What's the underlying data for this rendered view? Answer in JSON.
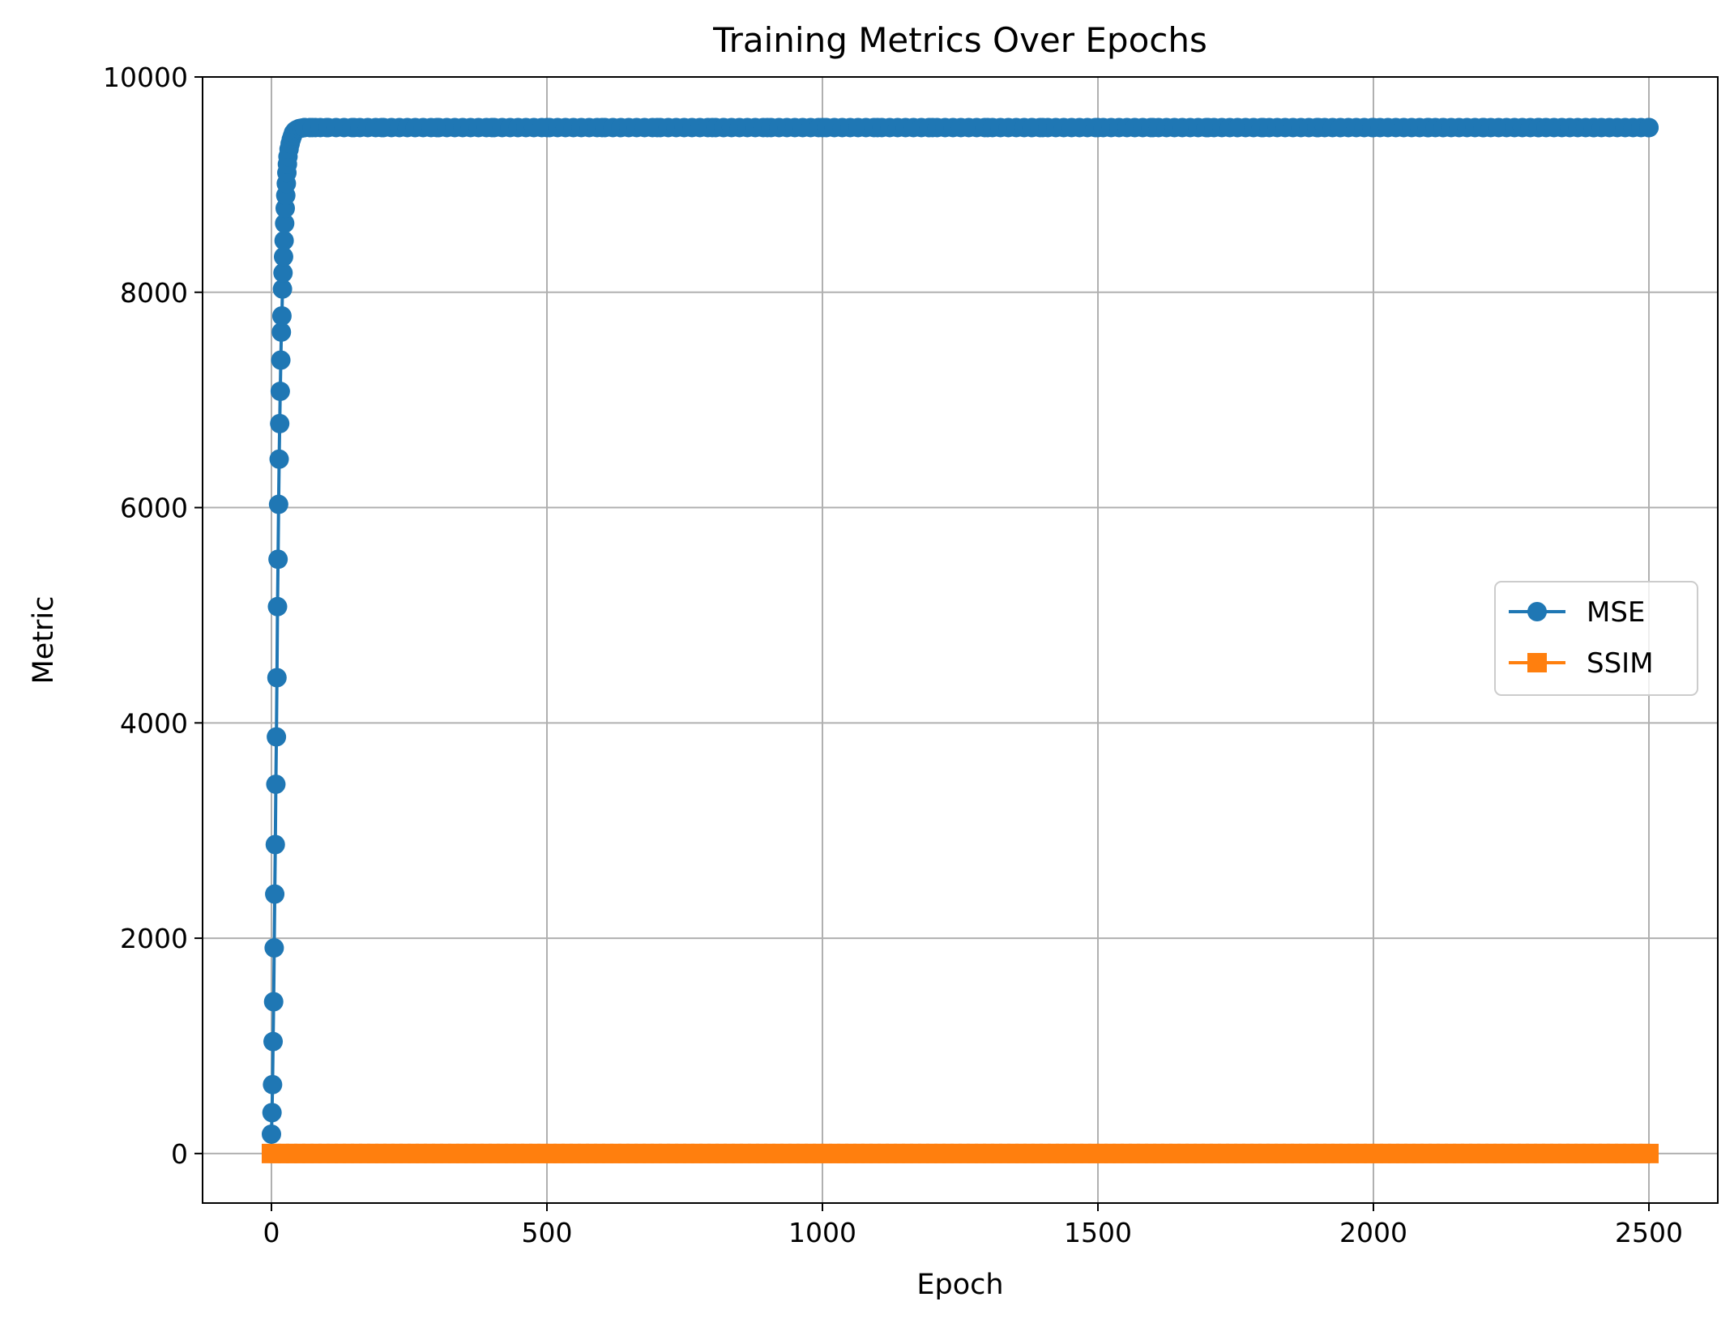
{
  "chart_data": {
    "type": "line",
    "title": "Training Metrics Over Epochs",
    "xlabel": "Epoch",
    "ylabel": "Metric",
    "xlim": [
      -125,
      2625
    ],
    "ylim": [
      -460,
      10000
    ],
    "xticks": [
      0,
      500,
      1000,
      1500,
      2000,
      2500
    ],
    "yticks": [
      0,
      2000,
      4000,
      6000,
      8000,
      10000
    ],
    "xtick_labels": [
      "0",
      "500",
      "1000",
      "1500",
      "2000",
      "2500"
    ],
    "ytick_labels": [
      "0",
      "2000",
      "4000",
      "6000",
      "8000",
      "10000"
    ],
    "grid": true,
    "legend_position": "center-right",
    "series": [
      {
        "name": "MSE",
        "color": "#1f77b4",
        "marker": "circle",
        "x": [
          0,
          1,
          2,
          3,
          4,
          5,
          6,
          7,
          8,
          9,
          10,
          11,
          12,
          13,
          14,
          15,
          16,
          17,
          18,
          19,
          20,
          21,
          22,
          23,
          24,
          25,
          26,
          27,
          28,
          29,
          30,
          32,
          34,
          36,
          38,
          40,
          43,
          46,
          50,
          55,
          60,
          70,
          80,
          100,
          150,
          200,
          300,
          400,
          500,
          600,
          700,
          800,
          900,
          1000,
          1100,
          1200,
          1300,
          1400,
          1500,
          1600,
          1700,
          1800,
          1900,
          2000,
          2100,
          2200,
          2300,
          2400,
          2500
        ],
        "y": [
          180,
          380,
          640,
          1040,
          1410,
          1910,
          2410,
          2870,
          3430,
          3870,
          4420,
          5080,
          5520,
          6030,
          6450,
          6780,
          7080,
          7370,
          7630,
          7780,
          8030,
          8180,
          8330,
          8480,
          8640,
          8780,
          8900,
          9010,
          9110,
          9190,
          9260,
          9330,
          9380,
          9420,
          9450,
          9480,
          9500,
          9510,
          9520,
          9525,
          9530,
          9530,
          9530,
          9530,
          9530,
          9530,
          9530,
          9530,
          9530,
          9530,
          9530,
          9530,
          9530,
          9530,
          9530,
          9530,
          9530,
          9530,
          9530,
          9530,
          9530,
          9530,
          9530,
          9530,
          9530,
          9530,
          9530,
          9530,
          9530
        ]
      },
      {
        "name": "SSIM",
        "color": "#ff7f0e",
        "marker": "square",
        "x": [
          0,
          2500
        ],
        "y": [
          0,
          0
        ]
      }
    ]
  }
}
